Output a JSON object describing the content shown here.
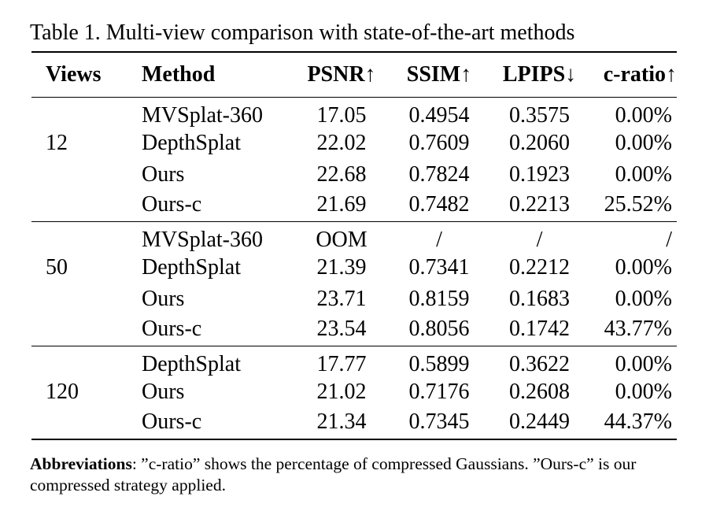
{
  "caption": "Table 1. Multi-view comparison with state-of-the-art methods",
  "headers": {
    "views": "Views",
    "method": "Method",
    "psnr": "PSNR↑",
    "ssim": "SSIM↑",
    "lpips": "LPIPS↓",
    "cratio": "c-ratio↑"
  },
  "groups": [
    {
      "views": "12",
      "rows": [
        [
          "MVSplat-360",
          "17.05",
          "0.4954",
          "0.3575",
          "0.00%"
        ],
        [
          "DepthSplat",
          "22.02",
          "0.7609",
          "0.2060",
          "0.00%"
        ],
        [
          "Ours",
          "22.68",
          "0.7824",
          "0.1923",
          "0.00%"
        ],
        [
          "Ours-c",
          "21.69",
          "0.7482",
          "0.2213",
          "25.52%"
        ]
      ]
    },
    {
      "views": "50",
      "rows": [
        [
          "MVSplat-360",
          "OOM",
          "/",
          "/",
          "/"
        ],
        [
          "DepthSplat",
          "21.39",
          "0.7341",
          "0.2212",
          "0.00%"
        ],
        [
          "Ours",
          "23.71",
          "0.8159",
          "0.1683",
          "0.00%"
        ],
        [
          "Ours-c",
          "23.54",
          "0.8056",
          "0.1742",
          "43.77%"
        ]
      ]
    },
    {
      "views": "120",
      "rows": [
        [
          "DepthSplat",
          "17.77",
          "0.5899",
          "0.3622",
          "0.00%"
        ],
        [
          "Ours",
          "21.02",
          "0.7176",
          "0.2608",
          "0.00%"
        ],
        [
          "Ours-c",
          "21.34",
          "0.7345",
          "0.2449",
          "44.37%"
        ]
      ]
    }
  ],
  "note": {
    "label": "Abbreviations",
    "text": ": ”c-ratio” shows the percentage of compressed Gaussians. ”Ours-c” is our compressed strategy applied."
  }
}
